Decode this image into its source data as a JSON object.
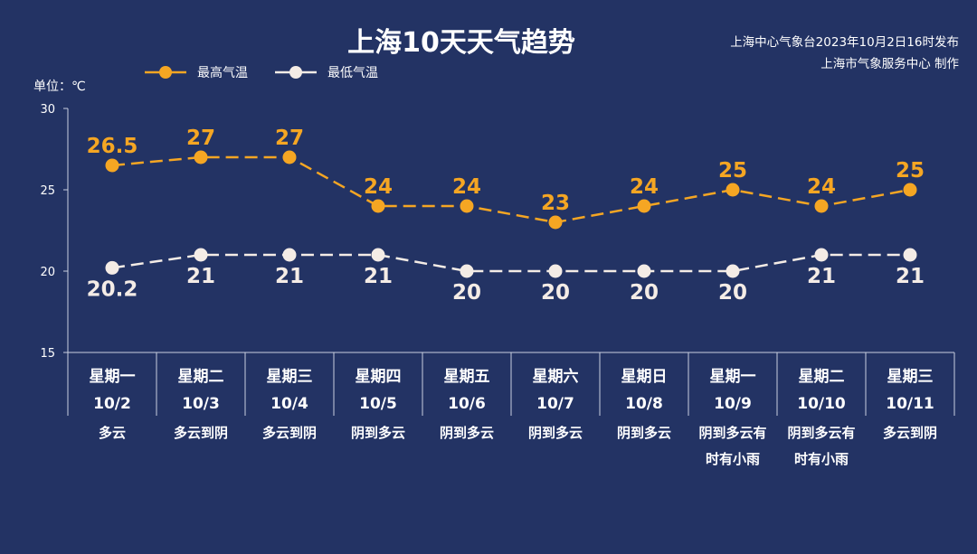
{
  "title": "上海10天天气趋势",
  "issuer": {
    "line1": "上海中心气象台2023年10月2日16时发布",
    "line2": "上海市气象服务中心 制作"
  },
  "unit_label": "单位：℃",
  "colors": {
    "background": "#233364",
    "max_series": "#f5a623",
    "min_series": "#f4ece6"
  },
  "chart_data": {
    "type": "line",
    "title": "上海10天天气趋势",
    "ylabel": "单位：℃",
    "ylim": [
      15,
      30
    ],
    "yticks": [
      15,
      20,
      25,
      30
    ],
    "grid": false,
    "legend_position": "top-left",
    "categories": [
      "10/2",
      "10/3",
      "10/4",
      "10/5",
      "10/6",
      "10/7",
      "10/8",
      "10/9",
      "10/10",
      "10/11"
    ],
    "weekdays": [
      "星期一",
      "星期二",
      "星期三",
      "星期四",
      "星期五",
      "星期六",
      "星期日",
      "星期一",
      "星期二",
      "星期三"
    ],
    "weather": [
      [
        "多云"
      ],
      [
        "多云到阴"
      ],
      [
        "多云到阴"
      ],
      [
        "阴到多云"
      ],
      [
        "阴到多云"
      ],
      [
        "阴到多云"
      ],
      [
        "阴到多云"
      ],
      [
        "阴到多云有",
        "时有小雨"
      ],
      [
        "阴到多云有",
        "时有小雨"
      ],
      [
        "多云到阴"
      ]
    ],
    "series": [
      {
        "name": "最高气温",
        "values": [
          26.5,
          27,
          27,
          24,
          24,
          23,
          24,
          25,
          24,
          25
        ],
        "labels": [
          "26.5",
          "27",
          "27",
          "24",
          "24",
          "23",
          "24",
          "25",
          "24",
          "25"
        ]
      },
      {
        "name": "最低气温",
        "values": [
          20.2,
          21,
          21,
          21,
          20,
          20,
          20,
          20,
          21,
          21
        ],
        "labels": [
          "20.2",
          "21",
          "21",
          "21",
          "20",
          "20",
          "20",
          "20",
          "21",
          "21"
        ]
      }
    ]
  }
}
